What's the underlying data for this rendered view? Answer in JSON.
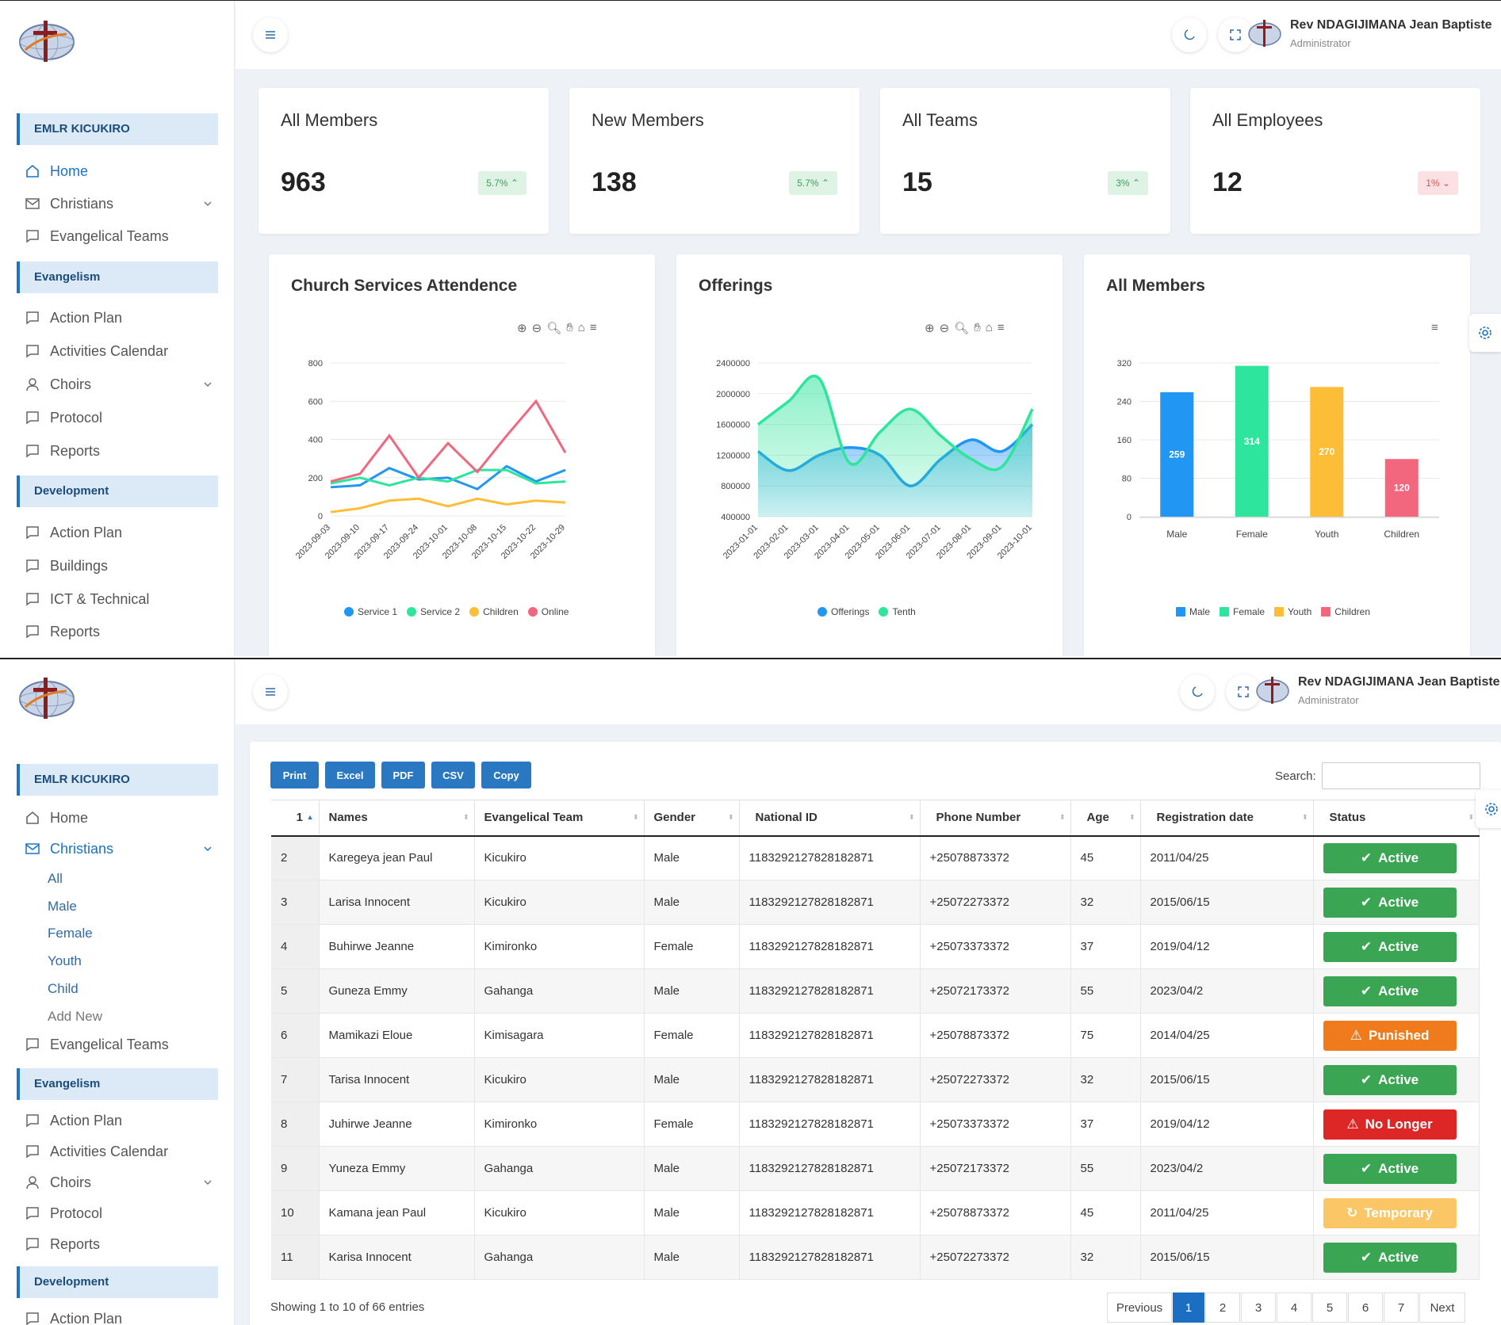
{
  "org": "EMLR KICUKIRO",
  "user": {
    "name": "Rev NDAGIJIMANA Jean Baptiste",
    "role": "Administrator"
  },
  "sidebar": {
    "evangelism": "Evangelism",
    "development": "Development",
    "home": "Home",
    "christians": "Christians",
    "evangelical_teams": "Evangelical Teams",
    "action_plan": "Action Plan",
    "activities_calendar": "Activities Calendar",
    "choirs": "Choirs",
    "protocol": "Protocol",
    "reports": "Reports",
    "buildings": "Buildings",
    "ict": "ICT & Technical",
    "christian_sub": [
      "All",
      "Male",
      "Female",
      "Youth",
      "Child",
      "Add New"
    ]
  },
  "kpis": [
    {
      "title": "All Members",
      "value": "963",
      "change": "5.7%",
      "trend": "up"
    },
    {
      "title": "New Members",
      "value": "138",
      "change": "5.7%",
      "trend": "up"
    },
    {
      "title": "All Teams",
      "value": "15",
      "change": "3%",
      "trend": "up"
    },
    {
      "title": "All Employees",
      "value": "12",
      "change": "1%",
      "trend": "down"
    }
  ],
  "chart_titles": [
    "Church Services Attendence",
    "Offerings",
    "All Members"
  ],
  "chart_data": [
    {
      "type": "line",
      "title": "Church Services Attendence",
      "x": [
        "2023-09-03",
        "2023-09-10",
        "2023-09-17",
        "2023-09-24",
        "2023-10-01",
        "2023-10-08",
        "2023-10-15",
        "2023-10-22",
        "2023-10-29"
      ],
      "ylim": [
        0,
        800
      ],
      "yticks": [
        0,
        200,
        400,
        600,
        800
      ],
      "series": [
        {
          "name": "Service 1",
          "color": "#2196f3",
          "values": [
            150,
            160,
            250,
            190,
            200,
            140,
            260,
            180,
            240
          ]
        },
        {
          "name": "Service 2",
          "color": "#2ee59d",
          "values": [
            170,
            200,
            160,
            200,
            180,
            240,
            240,
            170,
            180
          ]
        },
        {
          "name": "Children",
          "color": "#fdbe37",
          "values": [
            20,
            40,
            80,
            90,
            50,
            90,
            60,
            80,
            70
          ]
        },
        {
          "name": "Online",
          "color": "#f2667e",
          "values": [
            180,
            220,
            420,
            200,
            380,
            230,
            420,
            600,
            330
          ]
        }
      ],
      "legend": "bottom"
    },
    {
      "type": "area",
      "title": "Offerings",
      "x": [
        "2023-01-01",
        "2023-02-01",
        "2023-03-01",
        "2023-04-01",
        "2023-05-01",
        "2023-06-01",
        "2023-07-01",
        "2023-08-01",
        "2023-09-01",
        "2023-10-01"
      ],
      "ylim": [
        400000,
        2400000
      ],
      "yticks": [
        400000,
        800000,
        1200000,
        1600000,
        2000000,
        2400000
      ],
      "series": [
        {
          "name": "Offerings",
          "color": "#2196f3",
          "values": [
            1250000,
            1000000,
            1200000,
            1300000,
            1200000,
            800000,
            1150000,
            1400000,
            1250000,
            1600000
          ]
        },
        {
          "name": "Tenth",
          "color": "#2ee59d",
          "values": [
            1600000,
            1900000,
            2200000,
            1100000,
            1500000,
            1800000,
            1450000,
            1150000,
            1050000,
            1800000
          ]
        }
      ],
      "legend": "bottom"
    },
    {
      "type": "bar",
      "title": "All Members",
      "categories": [
        "Male",
        "Female",
        "Youth",
        "Children"
      ],
      "values": [
        259,
        314,
        270,
        120
      ],
      "colors": [
        "#2196f3",
        "#2ee59d",
        "#fdbe37",
        "#f2667e"
      ],
      "ylim": [
        0,
        320
      ],
      "yticks": [
        0,
        80,
        160,
        240,
        320
      ],
      "legend": "bottom"
    }
  ],
  "table": {
    "buttons": [
      "Print",
      "Excel",
      "PDF",
      "CSV",
      "Copy"
    ],
    "search_label": "Search:",
    "headers": [
      "1",
      "Names",
      "Evangelical Team",
      "Gender",
      "National ID",
      "Phone Number",
      "Age",
      "Registration date",
      "Status"
    ],
    "rows": [
      [
        "2",
        "Karegeya jean Paul",
        "Kicukiro",
        "Male",
        "1183292127828182871",
        "+25078873372",
        "45",
        "2011/04/25",
        "Active"
      ],
      [
        "3",
        "Larisa Innocent",
        "Kicukiro",
        "Male",
        "1183292127828182871",
        "+25072273372",
        "32",
        "2015/06/15",
        "Active"
      ],
      [
        "4",
        "Buhirwe Jeanne",
        "Kimironko",
        "Female",
        "1183292127828182871",
        "+25073373372",
        "37",
        "2019/04/12",
        "Active"
      ],
      [
        "5",
        "Guneza Emmy",
        "Gahanga",
        "Male",
        "1183292127828182871",
        "+25072173372",
        "55",
        "2023/04/2",
        "Active"
      ],
      [
        "6",
        "Mamikazi Eloue",
        "Kimisagara",
        "Female",
        "1183292127828182871",
        "+25078873372",
        "75",
        "2014/04/25",
        "Punished"
      ],
      [
        "7",
        "Tarisa Innocent",
        "Kicukiro",
        "Male",
        "1183292127828182871",
        "+25072273372",
        "32",
        "2015/06/15",
        "Active"
      ],
      [
        "8",
        "Juhirwe Jeanne",
        "Kimironko",
        "Female",
        "1183292127828182871",
        "+25073373372",
        "37",
        "2019/04/12",
        "No Longer"
      ],
      [
        "9",
        "Yuneza Emmy",
        "Gahanga",
        "Male",
        "1183292127828182871",
        "+25072173372",
        "55",
        "2023/04/2",
        "Active"
      ],
      [
        "10",
        "Kamana jean Paul",
        "Kicukiro",
        "Male",
        "1183292127828182871",
        "+25078873372",
        "45",
        "2011/04/25",
        "Temporary"
      ],
      [
        "11",
        "Karisa Innocent",
        "Gahanga",
        "Male",
        "1183292127828182871",
        "+25072273372",
        "32",
        "2015/06/15",
        "Active"
      ]
    ],
    "info": "Showing 1 to 10 of 66 entries",
    "pagination": [
      "Previous",
      "1",
      "2",
      "3",
      "4",
      "5",
      "6",
      "7",
      "Next"
    ],
    "current_page": "1"
  }
}
